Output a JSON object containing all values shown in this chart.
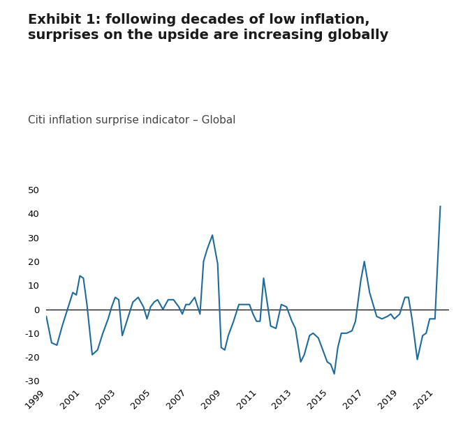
{
  "title_line1": "Exhibit 1: following decades of low inflation,",
  "title_line2": "surprises on the upside are increasing globally",
  "subtitle": "Citi inflation surprise indicator – Global",
  "line_color": "#1e6b9b",
  "zero_line_color": "#000000",
  "background_color": "#ffffff",
  "ylim": [
    -30,
    50
  ],
  "yticks": [
    -30,
    -20,
    -10,
    0,
    10,
    20,
    30,
    40,
    50
  ],
  "xlim_start": 1999,
  "xlim_end": 2021.8,
  "xticks": [
    1999,
    2001,
    2003,
    2005,
    2007,
    2009,
    2011,
    2013,
    2015,
    2017,
    2019,
    2021
  ],
  "x": [
    1999.0,
    1999.3,
    1999.6,
    1999.9,
    2000.2,
    2000.5,
    2000.7,
    2000.9,
    2001.1,
    2001.3,
    2001.6,
    2001.9,
    2002.2,
    2002.5,
    2002.7,
    2002.9,
    2003.1,
    2003.3,
    2003.6,
    2003.9,
    2004.2,
    2004.5,
    2004.7,
    2004.9,
    2005.1,
    2005.3,
    2005.6,
    2005.9,
    2006.2,
    2006.5,
    2006.7,
    2006.9,
    2007.1,
    2007.4,
    2007.7,
    2007.9,
    2008.1,
    2008.4,
    2008.7,
    2008.9,
    2009.1,
    2009.3,
    2009.6,
    2009.9,
    2010.2,
    2010.5,
    2010.7,
    2010.9,
    2011.1,
    2011.3,
    2011.5,
    2011.7,
    2012.0,
    2012.3,
    2012.6,
    2012.9,
    2013.1,
    2013.4,
    2013.6,
    2013.9,
    2014.1,
    2014.4,
    2014.6,
    2014.9,
    2015.1,
    2015.3,
    2015.5,
    2015.7,
    2016.0,
    2016.3,
    2016.5,
    2016.8,
    2017.0,
    2017.3,
    2017.5,
    2017.7,
    2018.0,
    2018.3,
    2018.5,
    2018.7,
    2019.0,
    2019.3,
    2019.5,
    2019.7,
    2020.0,
    2020.3,
    2020.5,
    2020.7,
    2021.0,
    2021.3
  ],
  "y": [
    -3,
    -14,
    -15,
    -7,
    0,
    7,
    6,
    14,
    13,
    2,
    -19,
    -17,
    -10,
    -4,
    1,
    5,
    4,
    -11,
    -4,
    3,
    5,
    1,
    -4,
    1,
    3,
    4,
    0,
    4,
    4,
    1,
    -2,
    2,
    2,
    5,
    -2,
    20,
    25,
    31,
    19,
    -16,
    -17,
    -11,
    -5,
    2,
    2,
    2,
    -2,
    -5,
    -5,
    13,
    3,
    -7,
    -8,
    2,
    1,
    -5,
    -8,
    -22,
    -19,
    -11,
    -10,
    -12,
    -16,
    -22,
    -23,
    -27,
    -16,
    -10,
    -10,
    -9,
    -5,
    12,
    20,
    7,
    2,
    -3,
    -4,
    -3,
    -2,
    -4,
    -2,
    5,
    5,
    -4,
    -21,
    -11,
    -10,
    -4,
    -4,
    43
  ],
  "title_fontsize": 14,
  "subtitle_fontsize": 11,
  "tick_fontsize": 9.5
}
